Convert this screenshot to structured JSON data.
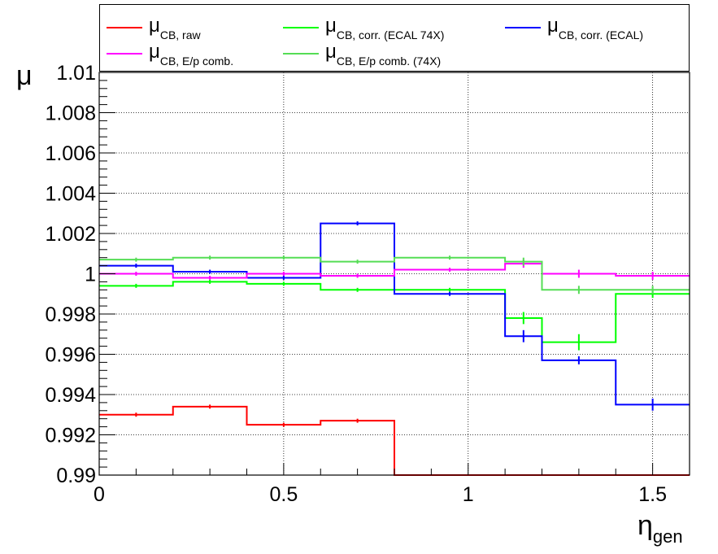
{
  "chart_data": {
    "type": "line",
    "title": "",
    "xlabel": "η",
    "xlabel_sub": "gen",
    "ylabel": "μ",
    "xlim": [
      0,
      1.6
    ],
    "ylim": [
      0.99,
      1.01
    ],
    "grid": true,
    "legend_position": "top",
    "x_ticks": [
      {
        "value": 0,
        "label": "0"
      },
      {
        "value": 0.5,
        "label": "0.5"
      },
      {
        "value": 1,
        "label": "1"
      },
      {
        "value": 1.5,
        "label": "1.5"
      }
    ],
    "y_ticks": [
      {
        "value": 0.99,
        "label": "0.99"
      },
      {
        "value": 0.992,
        "label": "0.992"
      },
      {
        "value": 0.994,
        "label": "0.994"
      },
      {
        "value": 0.996,
        "label": "0.996"
      },
      {
        "value": 0.998,
        "label": "0.998"
      },
      {
        "value": 1.0,
        "label": "1"
      },
      {
        "value": 1.002,
        "label": "1.002"
      },
      {
        "value": 1.004,
        "label": "1.004"
      },
      {
        "value": 1.006,
        "label": "1.006"
      },
      {
        "value": 1.008,
        "label": "1.008"
      },
      {
        "value": 1.01,
        "label": "1.01"
      }
    ],
    "bin_edges": [
      0,
      0.2,
      0.4,
      0.6,
      0.8,
      1.1,
      1.2,
      1.4,
      1.6
    ],
    "series": [
      {
        "id": "raw",
        "name": "μ",
        "name_sub": "CB, raw",
        "color": "#ff0000",
        "values": [
          0.993,
          0.9934,
          0.9925,
          0.9927,
          0.99,
          0.99,
          0.99,
          0.99
        ],
        "errors": [
          0.0001,
          0.0001,
          0.0001,
          0.0001,
          0,
          0,
          0,
          0
        ]
      },
      {
        "id": "corr74x",
        "name": "μ",
        "name_sub": "CB, corr. (ECAL 74X)",
        "color": "#00ff00",
        "values": [
          0.9994,
          0.9996,
          0.9995,
          0.9992,
          0.9992,
          0.9978,
          0.9966,
          0.999
        ],
        "errors": [
          0.0001,
          0.0001,
          0.0001,
          0.0001,
          0.0001,
          0.0003,
          0.0004,
          0.0002
        ]
      },
      {
        "id": "corr",
        "name": "μ",
        "name_sub": "CB, corr. (ECAL)",
        "color": "#0000ff",
        "values": [
          1.0004,
          1.0001,
          0.9998,
          1.0025,
          0.999,
          0.9969,
          0.9957,
          0.9935
        ],
        "errors": [
          0.0001,
          0.0001,
          0.0001,
          0.0001,
          0.0001,
          0.0003,
          0.0002,
          0.0003
        ]
      },
      {
        "id": "ep",
        "name": "μ",
        "name_sub": "CB, E/p comb.",
        "color": "#ff00ff",
        "values": [
          1.0,
          0.9998,
          1.0,
          0.9999,
          1.0002,
          1.0005,
          1.0,
          0.9999
        ],
        "errors": [
          0.0001,
          0.0001,
          0.0001,
          0.0001,
          0.0001,
          0.0002,
          0.0002,
          0.0002
        ]
      },
      {
        "id": "ep74x",
        "name": "μ",
        "name_sub": "CB, E/p comb. (74X)",
        "color": "#55dd55",
        "values": [
          1.0007,
          1.0008,
          1.0008,
          1.0006,
          1.0008,
          1.0006,
          0.9992,
          0.9992
        ],
        "errors": [
          0.0001,
          0.0001,
          0.0001,
          0.0001,
          0.0001,
          0.0002,
          0.0002,
          0.0002
        ]
      }
    ]
  },
  "legend": {
    "items": [
      {
        "mu": "μ",
        "sub": "CB, raw",
        "color": "#ff0000"
      },
      {
        "mu": "μ",
        "sub": "CB, corr. (ECAL 74X)",
        "color": "#00ff00"
      },
      {
        "mu": "μ",
        "sub": "CB, corr. (ECAL)",
        "color": "#0000ff"
      },
      {
        "mu": "μ",
        "sub": "CB, E/p comb.",
        "color": "#ff00ff"
      },
      {
        "mu": "μ",
        "sub": "CB, E/p comb. (74X)",
        "color": "#55dd55"
      }
    ]
  }
}
